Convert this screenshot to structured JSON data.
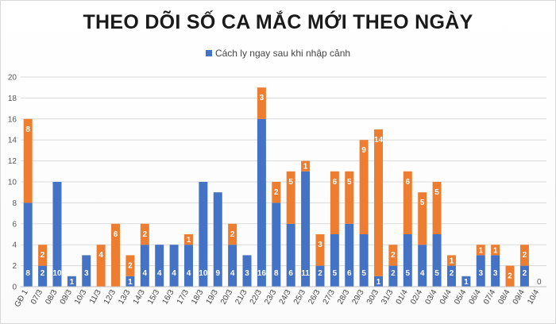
{
  "chart_data": {
    "type": "bar",
    "stacked": true,
    "title": "THEO DÕI SỐ CA MẮC MỚI THEO NGÀY",
    "legend_position": "top",
    "grid": true,
    "ylim": [
      0,
      20
    ],
    "yticks": [
      0,
      2,
      4,
      6,
      8,
      10,
      12,
      14,
      16,
      18,
      20
    ],
    "categories": [
      "GĐ 1",
      "07/3",
      "08/3",
      "09/3",
      "10/3",
      "11/3",
      "12/3",
      "13/3",
      "14/3",
      "15/3",
      "16/3",
      "17/3",
      "18/3",
      "19/3",
      "20/3",
      "21/3",
      "22/3",
      "23/3",
      "24/3",
      "25/3",
      "26/3",
      "27/3",
      "28/3",
      "29/3",
      "30/3",
      "31/3",
      "01/4",
      "02/4",
      "03/4",
      "04/4",
      "05/4",
      "06/4",
      "07/4",
      "08/4",
      "09/4",
      "10/4"
    ],
    "series": [
      {
        "name": "Cách ly ngay sau khi nhập cảnh",
        "color": "#4472c4",
        "values": [
          8,
          2,
          10,
          1,
          3,
          0,
          0,
          1,
          4,
          4,
          4,
          4,
          10,
          9,
          4,
          3,
          16,
          8,
          6,
          11,
          2,
          5,
          6,
          5,
          1,
          2,
          5,
          4,
          5,
          2,
          1,
          3,
          3,
          0,
          2,
          0
        ]
      },
      {
        "name": "",
        "color": "#ed7d31",
        "values": [
          8,
          2,
          0,
          0,
          0,
          4,
          6,
          2,
          2,
          0,
          0,
          1,
          0,
          0,
          2,
          0,
          3,
          2,
          5,
          1,
          3,
          6,
          5,
          9,
          14,
          2,
          6,
          5,
          5,
          1,
          0,
          1,
          1,
          2,
          2,
          0
        ]
      }
    ],
    "zero_labels": [
      "0"
    ]
  }
}
